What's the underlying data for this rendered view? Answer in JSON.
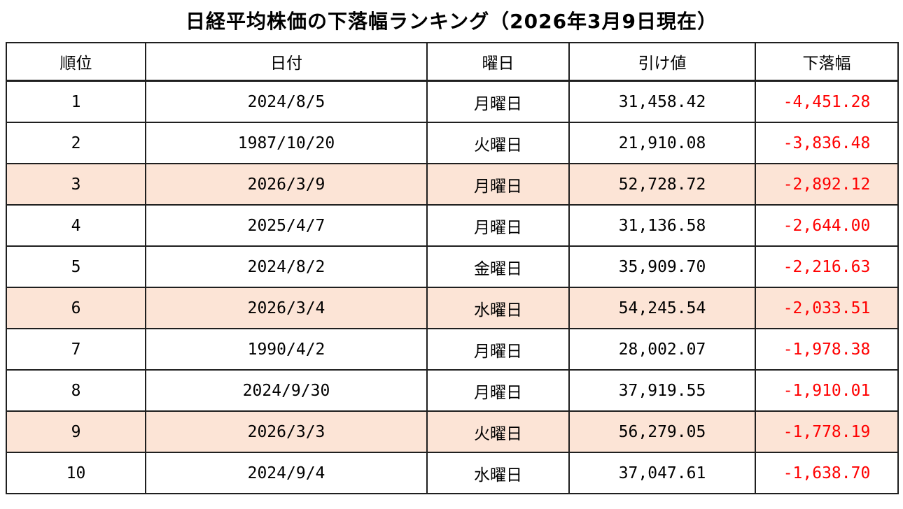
{
  "title": "日経平均株価の下落幅ランキング（2026年3月9日現在）",
  "colors": {
    "highlight_row_bg": "#fce4d6",
    "decline_text": "#ff0000",
    "border": "#1f1f1f",
    "background": "#ffffff"
  },
  "chart_data": {
    "type": "table",
    "title": "日経平均株価の下落幅ランキング（2026年3月9日現在）",
    "columns": [
      "順位",
      "日付",
      "曜日",
      "引け値",
      "下落幅"
    ],
    "rows": [
      {
        "rank": "1",
        "date": "2024/8/5",
        "weekday": "月曜日",
        "close": "31,458.42",
        "decline": "-4,451.28",
        "highlighted": false
      },
      {
        "rank": "2",
        "date": "1987/10/20",
        "weekday": "火曜日",
        "close": "21,910.08",
        "decline": "-3,836.48",
        "highlighted": false
      },
      {
        "rank": "3",
        "date": "2026/3/9",
        "weekday": "月曜日",
        "close": "52,728.72",
        "decline": "-2,892.12",
        "highlighted": true
      },
      {
        "rank": "4",
        "date": "2025/4/7",
        "weekday": "月曜日",
        "close": "31,136.58",
        "decline": "-2,644.00",
        "highlighted": false
      },
      {
        "rank": "5",
        "date": "2024/8/2",
        "weekday": "金曜日",
        "close": "35,909.70",
        "decline": "-2,216.63",
        "highlighted": false
      },
      {
        "rank": "6",
        "date": "2026/3/4",
        "weekday": "水曜日",
        "close": "54,245.54",
        "decline": "-2,033.51",
        "highlighted": true
      },
      {
        "rank": "7",
        "date": "1990/4/2",
        "weekday": "月曜日",
        "close": "28,002.07",
        "decline": "-1,978.38",
        "highlighted": false
      },
      {
        "rank": "8",
        "date": "2024/9/30",
        "weekday": "月曜日",
        "close": "37,919.55",
        "decline": "-1,910.01",
        "highlighted": false
      },
      {
        "rank": "9",
        "date": "2026/3/3",
        "weekday": "火曜日",
        "close": "56,279.05",
        "decline": "-1,778.19",
        "highlighted": true
      },
      {
        "rank": "10",
        "date": "2024/9/4",
        "weekday": "水曜日",
        "close": "37,047.61",
        "decline": "-1,638.70",
        "highlighted": false
      }
    ],
    "highlighted_ranks": [
      "3",
      "6",
      "9"
    ],
    "value_note_decline_color": "#ff0000"
  }
}
